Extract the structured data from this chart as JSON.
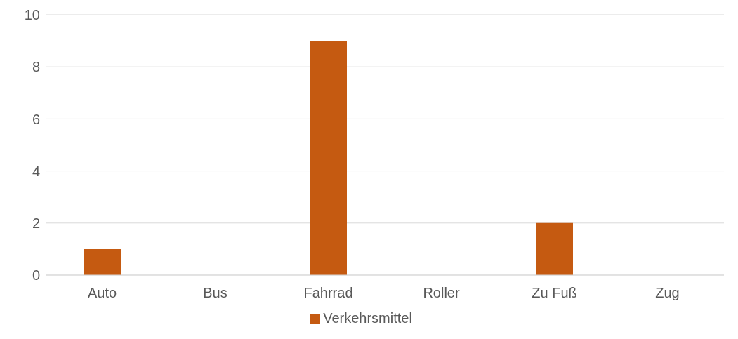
{
  "chart_data": {
    "type": "bar",
    "categories": [
      "Auto",
      "Bus",
      "Fahrrad",
      "Roller",
      "Zu Fuß",
      "Zug"
    ],
    "series": [
      {
        "name": "Verkehrsmittel",
        "color": "#c55a11",
        "values": [
          1,
          0,
          9,
          0,
          2,
          0
        ]
      }
    ],
    "ylim": [
      0,
      10
    ],
    "yticks": [
      0,
      2,
      4,
      6,
      8,
      10
    ],
    "grid": "y",
    "legend": "bottom"
  }
}
